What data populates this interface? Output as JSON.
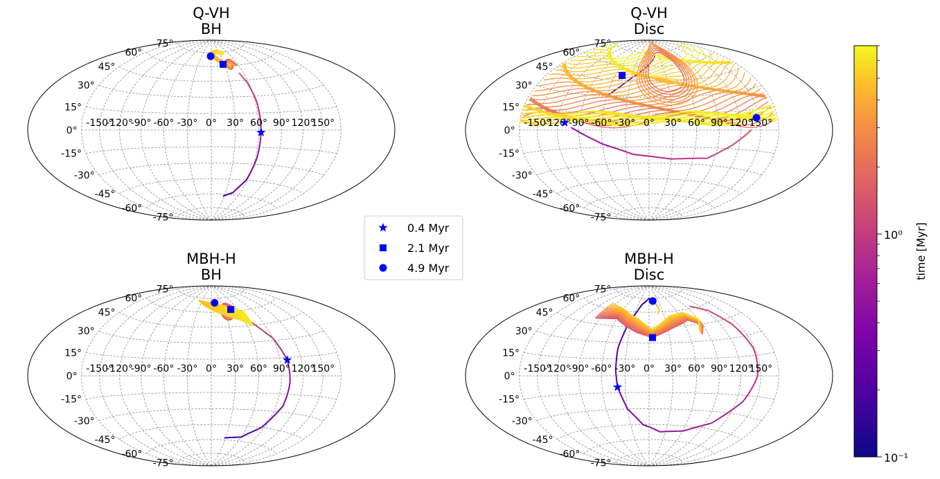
{
  "chart_data": {
    "type": "line",
    "projection": "hammer (aitoff-like) sky map",
    "grid": true,
    "longitude_ticks_deg": [
      "-150°",
      "-120°",
      "-90°",
      "-60°",
      "-30°",
      "0°",
      "30°",
      "60°",
      "90°",
      "120°",
      "150°"
    ],
    "latitude_ticks_deg": [
      "-75°",
      "-60°",
      "-45°",
      "-30°",
      "-15°",
      "0°",
      "15°",
      "30°",
      "45°",
      "60°",
      "75°"
    ],
    "legend": {
      "placement": "center",
      "entries": [
        {
          "label": "0.4 Myr",
          "marker": "star",
          "color": "#0000ff"
        },
        {
          "label": "2.1 Myr",
          "marker": "square",
          "color": "#0000ff"
        },
        {
          "label": "4.9 Myr",
          "marker": "circle",
          "color": "#0000ff"
        }
      ]
    },
    "colorbar": {
      "label": "time [Myr]",
      "scale": "log",
      "range": [
        0.1,
        7
      ],
      "colormap": "plasma",
      "tick_labels": [
        "10⁻¹",
        "10⁰"
      ],
      "tick_values": [
        0.1,
        1
      ]
    },
    "panels": [
      {
        "title": [
          "Q-VH",
          "BH"
        ],
        "markers": {
          "0.4 Myr": [
            63,
            -2
          ],
          "2.1 Myr": [
            27,
            62
          ],
          "4.9 Myr": [
            -2,
            71
          ]
        },
        "trajectory_summary": "track starts near lon 30, lat -60, rises through the 0.4 Myr star near lon 63, lat -2, then spirals in loops near lon 40-60, lat 55-65 and ends near the pole region"
      },
      {
        "title": [
          "Q-VH",
          "Disc"
        ],
        "markers": {
          "0.4 Myr": [
            -110,
            6
          ],
          "2.1 Myr": [
            -48,
            50
          ],
          "4.9 Myr": [
            145,
            9
          ]
        },
        "trajectory_summary": "long-period circulation: dense band of orbits filling lat 5-70 across all longitudes, with a hole centered near lon 30, lat 55; early track dips to lat -25"
      },
      {
        "title": [
          "MBH-H",
          "BH"
        ],
        "markers": {
          "0.4 Myr": [
            100,
            13
          ],
          "2.1 Myr": [
            45,
            62
          ],
          "4.9 Myr": [
            10,
            70
          ]
        },
        "trajectory_summary": "track starts near lon 30, lat -55, rises through the 0.4 Myr star near lon 100, lat 13, then loops between lon 0-80, lat 40-70"
      },
      {
        "title": [
          "MBH-H",
          "Disc"
        ],
        "markers": {
          "0.4 Myr": [
            -40,
            -10
          ],
          "2.1 Myr": [
            5,
            35
          ],
          "4.9 Myr": [
            12,
            72
          ]
        },
        "trajectory_summary": "large loop spanning lon -40 to 150, lat -50 to 60, then repeated arcs between lon -100 and 90 at lat 30-70"
      }
    ]
  }
}
